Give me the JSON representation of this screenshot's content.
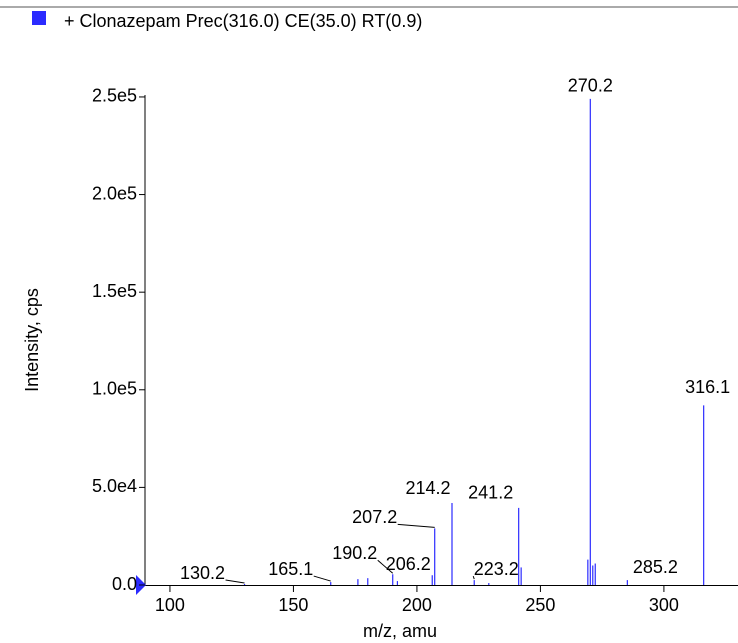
{
  "chart_data": {
    "type": "spectrum",
    "legend": "+ Clonazepam Prec(316.0) CE(35.0) RT(0.9)",
    "xlabel": "m/z, amu",
    "ylabel": "Intensity, cps",
    "color": "#2b2bff",
    "x": [
      130.2,
      165.1,
      176.1,
      180.1,
      190.2,
      192.1,
      206.2,
      207.2,
      214.2,
      223.2,
      229.1,
      241.2,
      242.2,
      269.2,
      270.2,
      271.2,
      272.2,
      285.2,
      316.1
    ],
    "values": [
      500,
      1500,
      3000,
      3500,
      5500,
      2000,
      5000,
      29000,
      42000,
      2500,
      1000,
      39500,
      9000,
      13000,
      249000,
      10000,
      11000,
      2500,
      92000
    ],
    "x_labels": [
      "130.2",
      "165.1",
      null,
      null,
      "190.2",
      null,
      "206.2",
      "207.2",
      "214.2",
      "223.2",
      null,
      "241.2",
      null,
      null,
      "270.2",
      null,
      null,
      "285.2",
      "316.1"
    ],
    "xlim": [
      89.9,
      330
    ],
    "xticks": [
      100,
      150,
      200,
      250,
      300
    ],
    "ylim": [
      0,
      251000
    ],
    "yticks": [
      {
        "value": 0,
        "label": "0.0"
      },
      {
        "value": 50000,
        "label": "5.0e4"
      },
      {
        "value": 100000,
        "label": "1.0e5"
      },
      {
        "value": 150000,
        "label": "1.5e5"
      },
      {
        "value": 200000,
        "label": "2.0e5"
      },
      {
        "value": 250000,
        "label": "2.5e5"
      }
    ]
  }
}
